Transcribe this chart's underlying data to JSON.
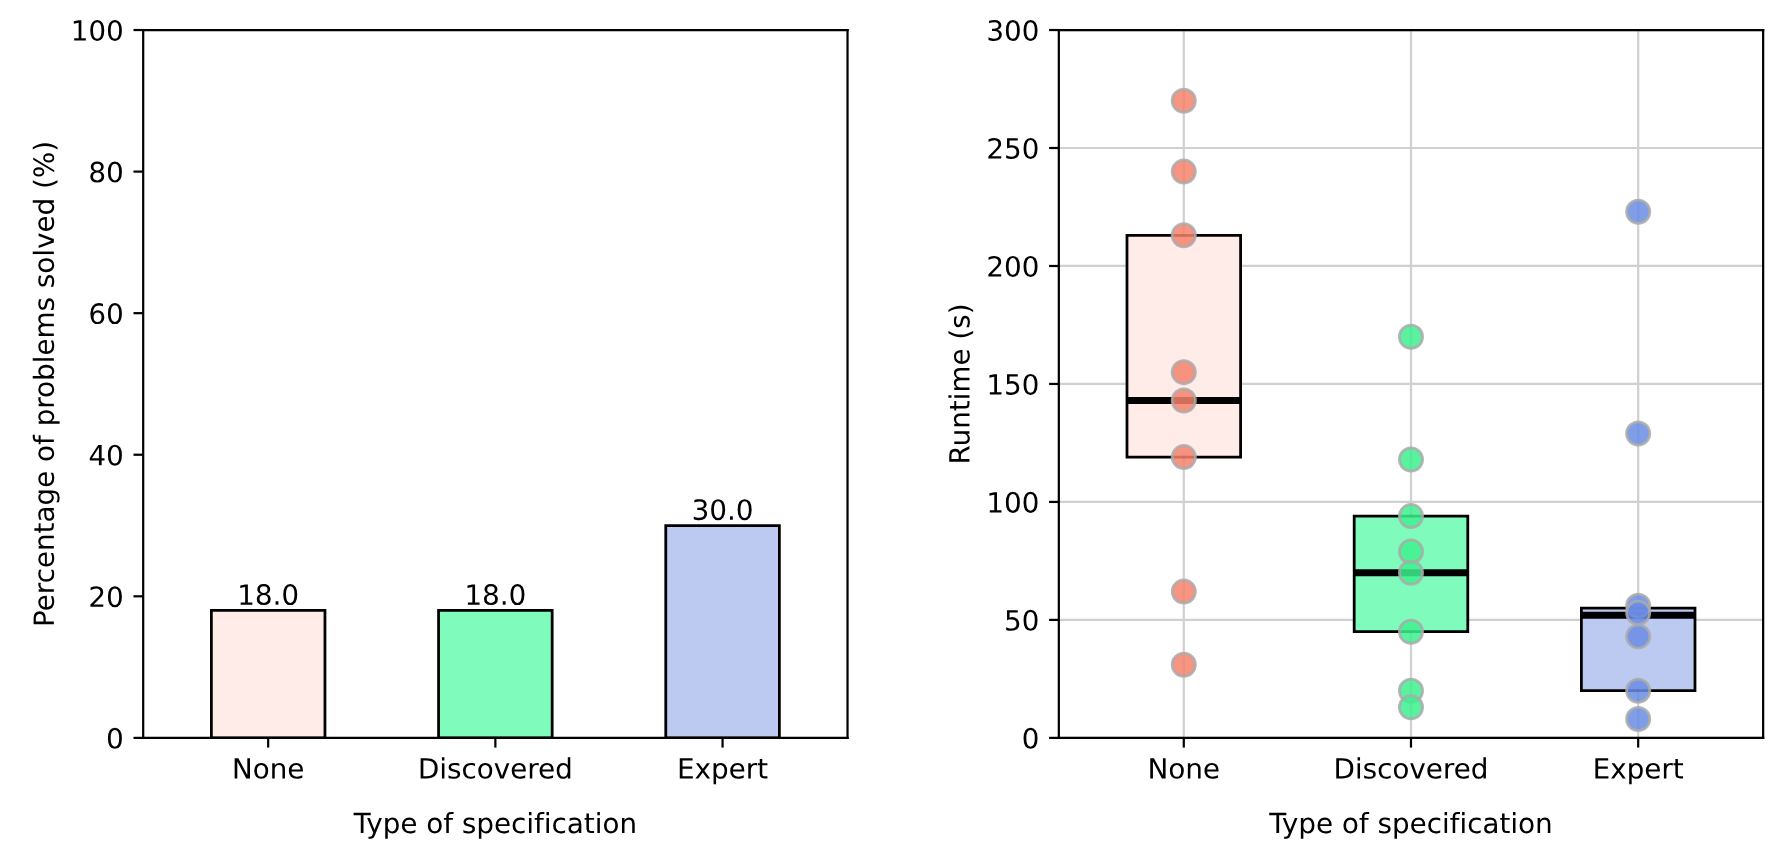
{
  "chart_data": [
    {
      "type": "bar",
      "xlabel": "Type of specification",
      "ylabel": "Percentage of problems solved (%)",
      "categories": [
        "None",
        "Discovered",
        "Expert"
      ],
      "values": [
        18.0,
        18.0,
        30.0
      ],
      "colors": [
        "#ffece8",
        "#7ffbbb",
        "#bccaf2"
      ],
      "ylim": [
        0,
        100
      ],
      "yticks": [
        0,
        20,
        40,
        60,
        80,
        100
      ],
      "value_labels": [
        "18.0",
        "18.0",
        "30.0"
      ],
      "grid": false
    },
    {
      "type": "box",
      "xlabel": "Type of specification",
      "ylabel": "Runtime (s)",
      "categories": [
        "None",
        "Discovered",
        "Expert"
      ],
      "colors": [
        "#ffece8",
        "#7ffbbb",
        "#bccaf2"
      ],
      "boxes": [
        {
          "low": 119,
          "q1": 119,
          "median": 143,
          "q3": 213,
          "high": 213
        },
        {
          "low": 45,
          "q1": 45,
          "median": 70,
          "q3": 94,
          "high": 94
        },
        {
          "low": 20,
          "q1": 20,
          "median": 52,
          "q3": 55,
          "high": 55
        }
      ],
      "series": [
        {
          "type": "scatter",
          "color": "#f4826c",
          "x": [
            "None",
            "None",
            "None",
            "None",
            "None",
            "None",
            "None",
            "None"
          ],
          "values": [
            270,
            240,
            213,
            155,
            143,
            119,
            62,
            31
          ]
        },
        {
          "type": "scatter",
          "color": "#3ef08e",
          "x": [
            "Discovered",
            "Discovered",
            "Discovered",
            "Discovered",
            "Discovered",
            "Discovered",
            "Discovered",
            "Discovered"
          ],
          "values": [
            170,
            118,
            94,
            79,
            70,
            45,
            20,
            13
          ]
        },
        {
          "type": "scatter",
          "color": "#6a8ce4",
          "x": [
            "Expert",
            "Expert",
            "Expert",
            "Expert",
            "Expert",
            "Expert",
            "Expert"
          ],
          "values": [
            223,
            129,
            56,
            53,
            43,
            20,
            8
          ]
        }
      ],
      "ylim": [
        0,
        300
      ],
      "yticks": [
        0,
        50,
        100,
        150,
        200,
        250,
        300
      ],
      "grid": true
    }
  ]
}
